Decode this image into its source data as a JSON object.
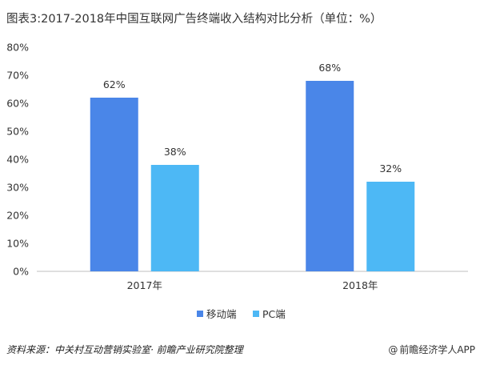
{
  "header": {
    "title": "图表3:2017-2018年中国互联网广告终端收入结构对比分析（单位：%）"
  },
  "footer": {
    "source": "资料来源：中关村互动营销实验室· 前瞻产业研究院整理",
    "brand_symbol": "@",
    "brand": "前瞻经济学人APP"
  },
  "colors": {
    "series1": "#4a86e8",
    "series2": "#4db8f5"
  },
  "chart_data": {
    "type": "bar",
    "categories": [
      "2017年",
      "2018年"
    ],
    "series": [
      {
        "name": "移动端",
        "values": [
          62,
          68
        ],
        "labels": [
          "62%",
          "68%"
        ]
      },
      {
        "name": "PC端",
        "values": [
          38,
          32
        ],
        "labels": [
          "38%",
          "32%"
        ]
      }
    ],
    "yticks": [
      "0%",
      "10%",
      "20%",
      "30%",
      "40%",
      "50%",
      "60%",
      "70%",
      "80%"
    ],
    "ylim": [
      0,
      80
    ],
    "legend_position": "bottom",
    "grid": false
  }
}
